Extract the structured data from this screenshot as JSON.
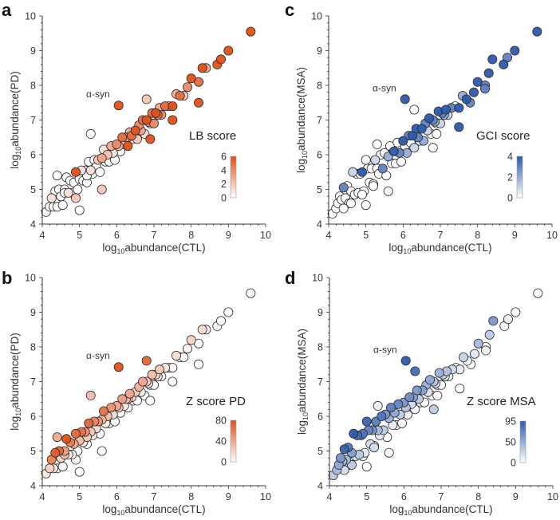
{
  "chart_data": {
    "shared": {
      "x_ctl": [
        4.1,
        4.2,
        4.25,
        4.3,
        4.35,
        4.4,
        4.45,
        4.5,
        4.55,
        4.6,
        4.65,
        4.7,
        4.75,
        4.8,
        4.85,
        4.9,
        4.95,
        5.0,
        5.05,
        5.1,
        5.15,
        5.2,
        5.25,
        5.3,
        5.35,
        5.4,
        5.45,
        5.5,
        5.55,
        5.6,
        5.65,
        5.7,
        5.75,
        5.8,
        5.85,
        5.9,
        5.95,
        6.0,
        6.05,
        6.1,
        6.15,
        6.2,
        6.25,
        6.3,
        6.35,
        6.4,
        6.45,
        6.5,
        6.55,
        6.6,
        6.65,
        6.7,
        6.75,
        6.8,
        6.85,
        6.9,
        6.95,
        7.0,
        7.05,
        7.1,
        7.15,
        7.2,
        7.3,
        7.4,
        7.5,
        7.6,
        7.7,
        7.8,
        7.9,
        8.0,
        8.2,
        8.3,
        8.4,
        8.7,
        8.8,
        9.0,
        9.6,
        5.3,
        4.4,
        5.0,
        6.8,
        8.2,
        7.5,
        6.9,
        4.9,
        5.6,
        6.3,
        4.6,
        5.2,
        6.05
      ],
      "y_pd": [
        4.35,
        4.5,
        4.75,
        4.5,
        4.95,
        4.5,
        5.0,
        4.8,
        4.55,
        5.0,
        5.35,
        4.9,
        5.25,
        4.9,
        5.2,
        5.5,
        5.0,
        5.3,
        5.55,
        5.25,
        5.55,
        5.2,
        5.8,
        5.55,
        5.45,
        5.85,
        5.65,
        5.85,
        5.5,
        5.9,
        6.15,
        5.8,
        6.0,
        5.8,
        6.25,
        6.05,
        5.85,
        6.3,
        6.25,
        6.1,
        6.5,
        6.3,
        6.5,
        6.25,
        6.65,
        6.55,
        6.45,
        6.7,
        6.45,
        6.85,
        6.7,
        7.0,
        6.6,
        7.0,
        6.95,
        6.9,
        7.2,
        6.9,
        7.2,
        7.15,
        7.35,
        7.15,
        7.4,
        7.4,
        7.4,
        7.75,
        7.7,
        7.7,
        7.95,
        8.2,
        8.1,
        8.5,
        8.5,
        8.6,
        8.75,
        9.0,
        9.55,
        6.6,
        5.4,
        4.4,
        7.6,
        7.5,
        7.0,
        6.45,
        4.75,
        5.0,
        6.5,
        4.9,
        5.4,
        7.42
      ],
      "y_msa": [
        4.3,
        4.45,
        4.6,
        4.8,
        4.7,
        5.05,
        4.75,
        5.1,
        4.6,
        4.95,
        5.5,
        4.85,
        5.45,
        4.9,
        5.45,
        5.5,
        4.95,
        5.85,
        5.6,
        5.2,
        5.6,
        5.15,
        5.85,
        5.6,
        5.45,
        6.0,
        5.6,
        6.05,
        5.4,
        5.95,
        6.25,
        5.75,
        6.1,
        5.75,
        6.35,
        6.05,
        5.8,
        6.4,
        6.25,
        6.05,
        6.55,
        6.35,
        6.55,
        6.2,
        6.75,
        6.5,
        6.4,
        6.75,
        6.4,
        6.9,
        6.7,
        7.05,
        6.6,
        7.0,
        6.95,
        6.9,
        7.25,
        6.9,
        7.2,
        7.15,
        7.3,
        7.15,
        7.35,
        7.4,
        7.35,
        7.7,
        7.6,
        7.5,
        7.8,
        8.1,
        8.0,
        8.35,
        8.75,
        8.6,
        8.8,
        9.0,
        9.55,
        6.3,
        4.45,
        4.55,
        6.2,
        7.9,
        6.8,
        6.6,
        4.85,
        4.95,
        7.3,
        4.6,
        5.1,
        7.6
      ]
    },
    "panels": [
      {
        "id": "a",
        "letter": "a",
        "type": "scatter",
        "xlabel_prefix": "log",
        "xlabel_sub": "10",
        "xlabel_rest": "abundance(CTL)",
        "ylabel_prefix": "log",
        "ylabel_sub": "10",
        "ylabel_rest": "abundance(PD)",
        "y_key": "y_pd",
        "xlim": [
          4,
          10
        ],
        "ylim": [
          4,
          10
        ],
        "xticks": [
          "4",
          "5",
          "6",
          "7",
          "8",
          "9",
          "10"
        ],
        "yticks": [
          "4",
          "5",
          "6",
          "7",
          "8",
          "9",
          "10"
        ],
        "annotation": "α-syn",
        "legend_title": "LB score",
        "cbar_ticks": [
          "6",
          "4",
          "2",
          "0"
        ],
        "cbar_max": 6,
        "cmap_high": "#e0501a",
        "cmap_low": "#ffffff",
        "scores": [
          0,
          0,
          1,
          0,
          0,
          0,
          0,
          0,
          0,
          0,
          0,
          1,
          0,
          0,
          0,
          6,
          0,
          0,
          1,
          0,
          0,
          0,
          0,
          1,
          0,
          0,
          0,
          2,
          0,
          3,
          1,
          0,
          2,
          0,
          3,
          1,
          0,
          4,
          2,
          0,
          5,
          1,
          4,
          6,
          3,
          5,
          1,
          6,
          2,
          4,
          3,
          5,
          1,
          6,
          3,
          2,
          5,
          4,
          6,
          5,
          3,
          4,
          5,
          2,
          6,
          3,
          5,
          2,
          4,
          6,
          5,
          6,
          3,
          6,
          6,
          6,
          6,
          0,
          0,
          0,
          2,
          6,
          6,
          6,
          2,
          2,
          1,
          0,
          0,
          6
        ]
      },
      {
        "id": "b",
        "letter": "b",
        "type": "scatter",
        "xlabel_prefix": "log",
        "xlabel_sub": "10",
        "xlabel_rest": "abundance(CTL)",
        "ylabel_prefix": "log",
        "ylabel_sub": "10",
        "ylabel_rest": "abundance(PD)",
        "y_key": "y_pd",
        "xlim": [
          4,
          10
        ],
        "ylim": [
          4,
          10
        ],
        "xticks": [
          "4",
          "5",
          "6",
          "7",
          "8",
          "9",
          "10"
        ],
        "yticks": [
          "4",
          "5",
          "6",
          "7",
          "8",
          "9",
          "10"
        ],
        "annotation": "α-syn",
        "legend_title": "Z score PD",
        "cbar_ticks": [
          "80",
          "40",
          "0"
        ],
        "cbar_max": 80,
        "cmap_high": "#e0501a",
        "cmap_low": "#ffffff",
        "scores": [
          10,
          20,
          60,
          10,
          75,
          0,
          70,
          20,
          0,
          45,
          80,
          10,
          60,
          5,
          40,
          70,
          0,
          30,
          65,
          10,
          50,
          0,
          70,
          25,
          5,
          55,
          15,
          45,
          0,
          35,
          65,
          5,
          30,
          0,
          50,
          15,
          0,
          40,
          25,
          0,
          45,
          10,
          30,
          0,
          40,
          15,
          0,
          25,
          0,
          35,
          5,
          40,
          0,
          25,
          10,
          0,
          30,
          0,
          20,
          5,
          25,
          0,
          10,
          0,
          0,
          15,
          0,
          0,
          5,
          20,
          0,
          15,
          5,
          0,
          0,
          0,
          0,
          30,
          40,
          0,
          70,
          0,
          0,
          0,
          0,
          0,
          20,
          30,
          25,
          80
        ]
      },
      {
        "id": "c",
        "letter": "c",
        "type": "scatter",
        "xlabel_prefix": "log",
        "xlabel_sub": "10",
        "xlabel_rest": "abundance(CTL)",
        "ylabel_prefix": "log",
        "ylabel_sub": "10",
        "ylabel_rest": "abundance(MSA)",
        "y_key": "y_msa",
        "xlim": [
          4,
          10
        ],
        "ylim": [
          4,
          10
        ],
        "xticks": [
          "4",
          "5",
          "6",
          "7",
          "8",
          "9",
          "10"
        ],
        "yticks": [
          "4",
          "5",
          "6",
          "7",
          "8",
          "9",
          "10"
        ],
        "annotation": "α-syn",
        "legend_title": "GCI score",
        "cbar_ticks": [
          "4",
          "2",
          "0"
        ],
        "cbar_max": 4,
        "cmap_high": "#2d5aab",
        "cmap_low": "#ffffff",
        "scores": [
          0,
          0,
          0,
          0,
          0,
          3,
          0,
          0,
          0,
          0,
          1,
          0,
          0,
          0,
          0,
          4,
          0,
          0,
          0,
          0,
          0,
          0,
          1,
          0,
          0,
          0,
          3,
          0,
          0,
          2,
          0,
          0,
          4,
          0,
          0,
          3,
          0,
          4,
          0,
          2,
          3,
          0,
          4,
          1,
          4,
          3,
          0,
          4,
          2,
          3,
          1,
          4,
          0,
          3,
          2,
          0,
          4,
          1,
          3,
          2,
          4,
          1,
          3,
          0,
          4,
          2,
          4,
          3,
          4,
          4,
          3,
          4,
          4,
          4,
          3,
          4,
          4,
          0,
          0,
          0,
          0,
          3,
          4,
          0,
          0,
          0,
          0,
          0,
          0,
          4
        ]
      },
      {
        "id": "d",
        "letter": "d",
        "type": "scatter",
        "xlabel_prefix": "log",
        "xlabel_sub": "10",
        "xlabel_rest": "abundance(CTL)",
        "ylabel_prefix": "log",
        "ylabel_sub": "10",
        "ylabel_rest": "abundance(MSA)",
        "y_key": "y_msa",
        "xlim": [
          4,
          10
        ],
        "ylim": [
          4,
          10
        ],
        "xticks": [
          "4",
          "5",
          "6",
          "7",
          "8",
          "9",
          "10"
        ],
        "yticks": [
          "4",
          "5",
          "6",
          "7",
          "8",
          "9",
          "10"
        ],
        "annotation": "α-syn",
        "legend_title": "Z score MSA",
        "cbar_ticks": [
          "95",
          "50",
          "0"
        ],
        "cbar_max": 95,
        "cmap_high": "#2d5aab",
        "cmap_low": "#ffffff",
        "scores": [
          30,
          40,
          50,
          60,
          45,
          90,
          40,
          80,
          5,
          55,
          95,
          20,
          85,
          30,
          70,
          80,
          10,
          90,
          70,
          20,
          60,
          10,
          75,
          40,
          15,
          80,
          30,
          60,
          0,
          45,
          75,
          10,
          50,
          0,
          70,
          30,
          0,
          60,
          35,
          5,
          65,
          20,
          55,
          5,
          60,
          30,
          0,
          55,
          0,
          45,
          15,
          50,
          0,
          35,
          15,
          0,
          45,
          0,
          30,
          10,
          35,
          0,
          20,
          0,
          10,
          25,
          5,
          0,
          15,
          40,
          0,
          30,
          60,
          5,
          10,
          0,
          0,
          10,
          20,
          0,
          30,
          5,
          0,
          0,
          0,
          0,
          85,
          30,
          20,
          95
        ]
      }
    ]
  }
}
